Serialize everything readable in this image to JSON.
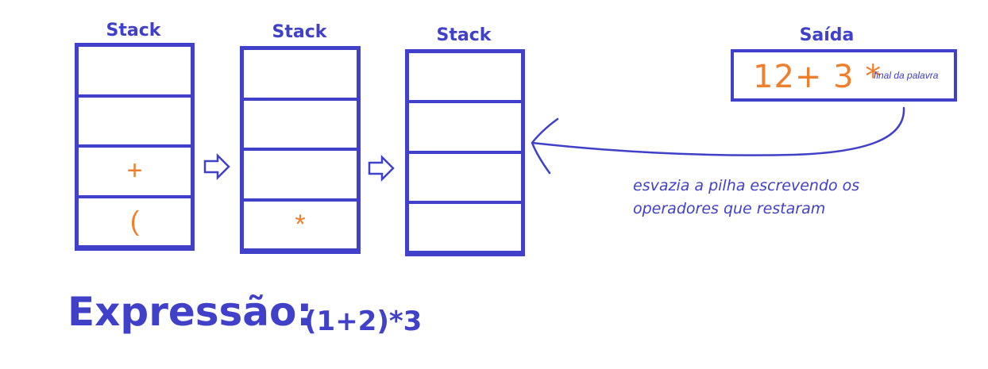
{
  "stacks": [
    {
      "title": "Stack",
      "cells": [
        "",
        "",
        "+",
        "("
      ]
    },
    {
      "title": "Stack",
      "cells": [
        "",
        "",
        "",
        "*"
      ]
    },
    {
      "title": "Stack",
      "cells": [
        "",
        "",
        "",
        ""
      ]
    }
  ],
  "output": {
    "title": "Saída",
    "value": "12+ 3 *",
    "note": "final da palavra"
  },
  "annotation": {
    "line1": "esvazia a pilha escrevendo os",
    "line2": "operadores que restaram"
  },
  "expression": {
    "label": "Expressão:",
    "value": "(1+2)*3"
  },
  "colors": {
    "primary": "#4040c8",
    "accent": "#f07f2c"
  }
}
